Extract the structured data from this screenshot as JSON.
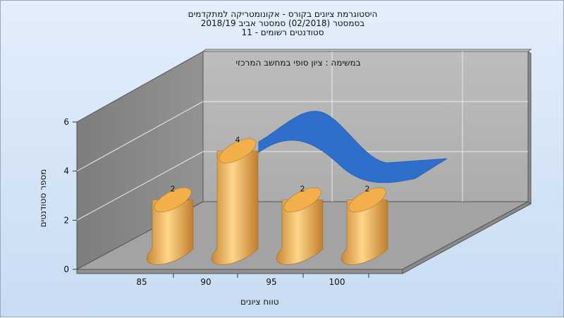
{
  "chart_data": {
    "type": "bar",
    "title_lines": [
      "היסטוגרמת ציונים בקורס - אקונומטריקה למתקדמים",
      "בסמסטר  (02/2018)  סמסטר אביב 2018/19",
      "סטודנטים רשומים - 11"
    ],
    "subtitle": "במשימה : ציון סופי במחשב המרכזי",
    "xlabel": "טווח ציונים",
    "ylabel": "מספר סטודנטים",
    "categories": [
      "85",
      "90",
      "95",
      "100"
    ],
    "values": [
      2,
      4,
      2,
      2
    ],
    "data_labels": [
      "2",
      "4",
      "2",
      "2"
    ],
    "y_ticks": [
      "0",
      "2",
      "4",
      "6"
    ],
    "ylim": [
      0,
      6
    ],
    "grid": true,
    "bar_color": "#e3a24c",
    "curve_color": "#2f6fcc"
  }
}
